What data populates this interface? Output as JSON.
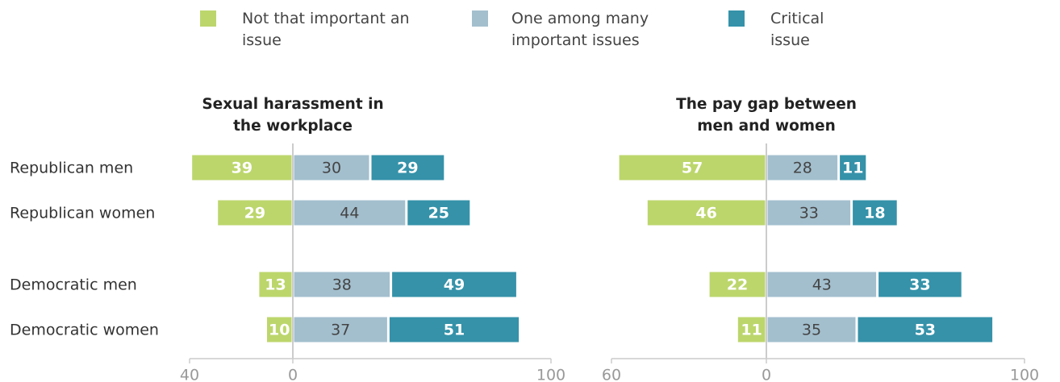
{
  "chart_data": [
    {
      "type": "diverging-bar",
      "title": "Sexual harassment in the workplace",
      "categories": [
        "Republican men",
        "Republican women",
        "Democratic men",
        "Democratic women"
      ],
      "series": [
        {
          "name": "Not that important an issue",
          "color": "#bcd66c",
          "values": [
            39,
            29,
            13,
            10
          ]
        },
        {
          "name": "One among many important issues",
          "color": "#a3bfce",
          "values": [
            30,
            44,
            38,
            37
          ]
        },
        {
          "name": "Critical issue",
          "color": "#3592a9",
          "values": [
            29,
            25,
            49,
            51
          ]
        }
      ],
      "xlim": [
        -40,
        100
      ],
      "xticks": [
        {
          "value": -40,
          "label": "40"
        },
        0,
        100
      ]
    },
    {
      "type": "diverging-bar",
      "title": "The pay gap between men and women",
      "series": [
        {
          "color": "#bcd66c",
          "values": [
            57,
            46,
            22,
            11
          ]
        },
        {
          "color": "#a3bfce",
          "values": [
            28,
            33,
            43,
            35
          ]
        },
        {
          "color": "#3592a9",
          "values": [
            11,
            18,
            33,
            53
          ]
        }
      ],
      "xlim": [
        -60,
        100
      ],
      "xticks": [
        {
          "value": -60,
          "label": "60"
        },
        0,
        100
      ]
    }
  ]
}
